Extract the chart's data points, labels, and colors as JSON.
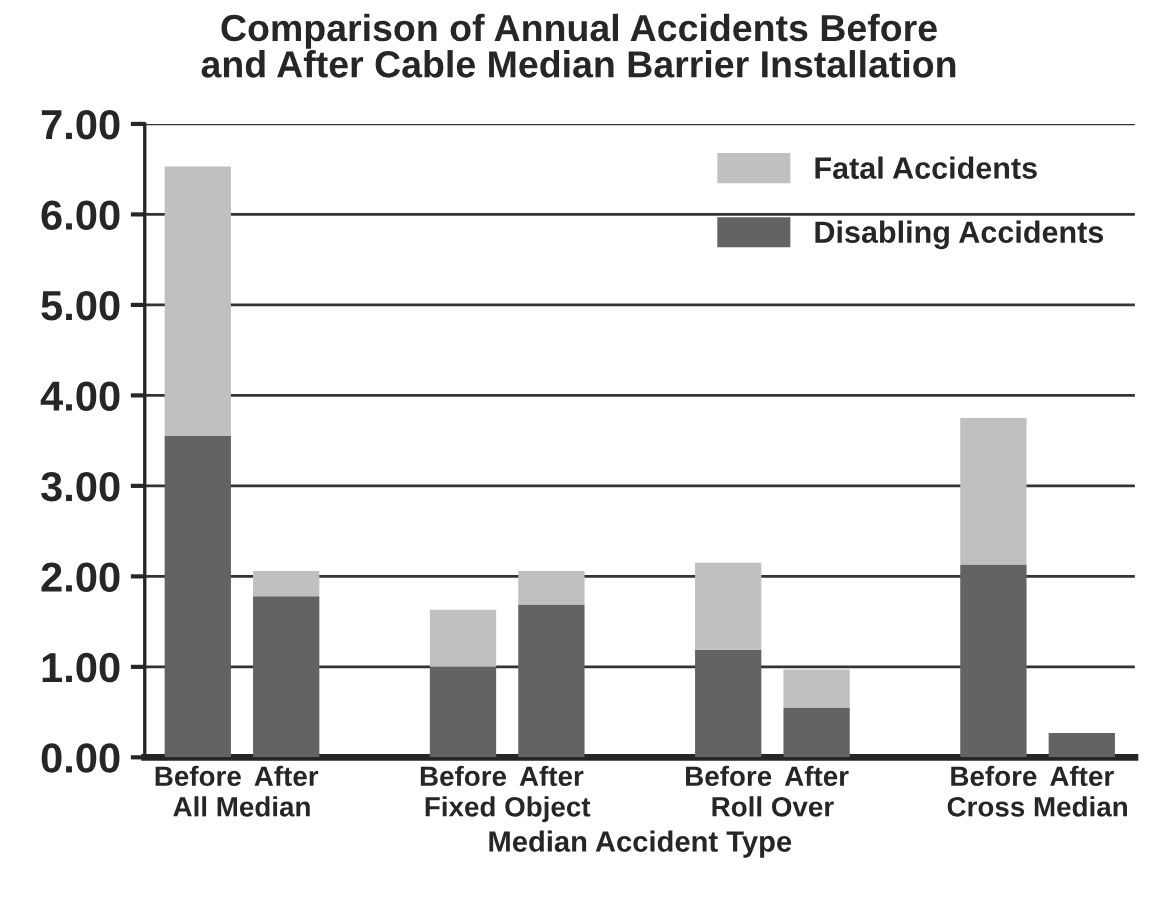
{
  "chart_data": {
    "type": "bar",
    "title": "Comparison of Annual Accidents Before\nand After Cable Median Barrier Installation",
    "xlabel": "Median Accident Type",
    "categories": [
      "Before",
      "After",
      null,
      "Before",
      "After",
      null,
      "Before",
      "After",
      null,
      "Before",
      "After"
    ],
    "stacked": true,
    "series": [
      {
        "name": "Disabling Accidents",
        "color": "#636363",
        "values": [
          3.55,
          1.78,
          null,
          1.0,
          1.69,
          null,
          1.19,
          0.55,
          null,
          2.13,
          0.27
        ]
      },
      {
        "name": "Fatal Accidents",
        "color": "#c0c0c0",
        "values": [
          2.98,
          0.28,
          null,
          0.63,
          0.37,
          null,
          0.96,
          0.42,
          null,
          1.62,
          0
        ]
      }
    ],
    "annotations": [
      "All Median",
      "Fixed Object",
      "Roll Over",
      "Cross Median"
    ],
    "ylim": [
      0,
      7
    ],
    "yticks": [
      {
        "value": 0,
        "label": "0.00"
      },
      {
        "value": 1,
        "label": "1.00"
      },
      {
        "value": 2,
        "label": "2.00"
      },
      {
        "value": 3,
        "label": "3.00"
      },
      {
        "value": 4,
        "label": "4.00"
      },
      {
        "value": 5,
        "label": "5.00"
      },
      {
        "value": 6,
        "label": "6.00"
      },
      {
        "value": 7,
        "label": "7.00"
      }
    ],
    "grid": "y",
    "legend": "top right"
  }
}
